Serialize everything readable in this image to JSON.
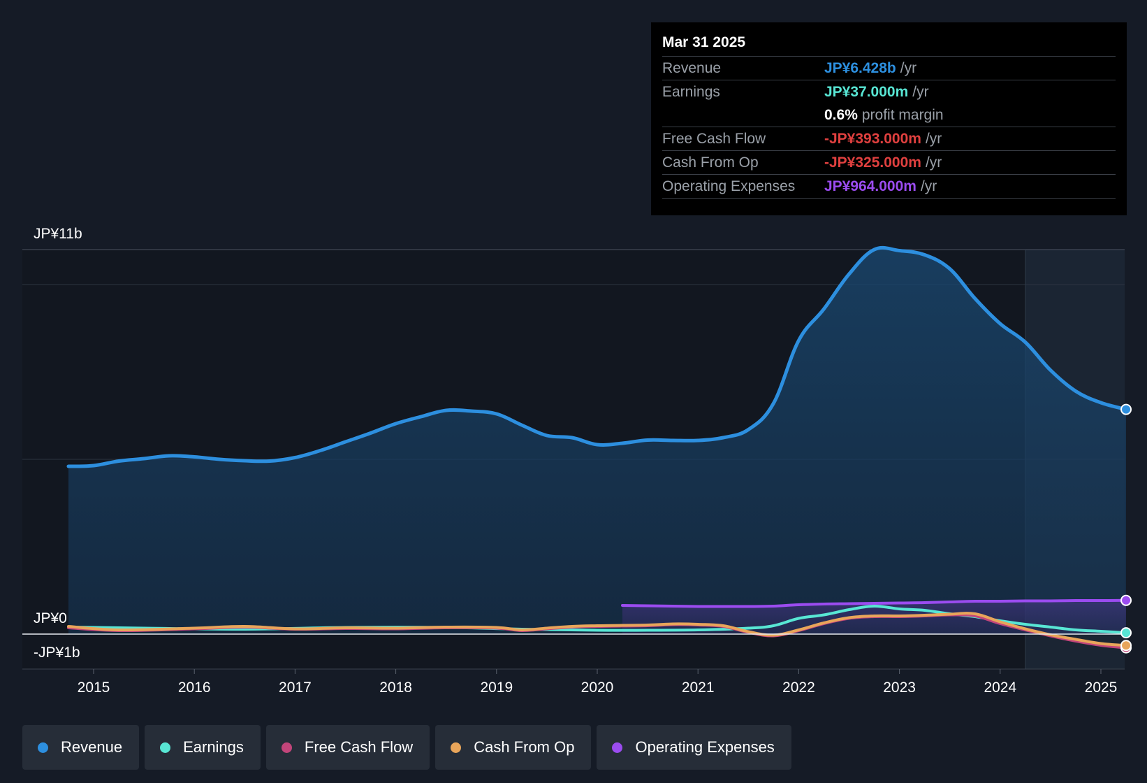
{
  "chart_data": {
    "type": "area",
    "title": "",
    "y_axis": {
      "top_label": "JP¥11b",
      "zero_label": "JP¥0",
      "bottom_label": "-JP¥1b",
      "ylim": [
        -1,
        11
      ],
      "unit": "JP¥ billions"
    },
    "x_ticks": [
      "2015",
      "2016",
      "2017",
      "2018",
      "2019",
      "2020",
      "2021",
      "2022",
      "2023",
      "2024",
      "2025"
    ],
    "forecast_start": 2024.25,
    "series": [
      {
        "name": "Revenue",
        "color": "#2d8fdf",
        "filled": true,
        "points": [
          [
            2014.75,
            4.8
          ],
          [
            2015.0,
            4.82
          ],
          [
            2015.25,
            4.95
          ],
          [
            2015.5,
            5.02
          ],
          [
            2015.75,
            5.1
          ],
          [
            2016.0,
            5.07
          ],
          [
            2016.25,
            5.0
          ],
          [
            2016.5,
            4.96
          ],
          [
            2016.75,
            4.95
          ],
          [
            2017.0,
            5.05
          ],
          [
            2017.25,
            5.25
          ],
          [
            2017.5,
            5.5
          ],
          [
            2017.75,
            5.75
          ],
          [
            2018.0,
            6.02
          ],
          [
            2018.25,
            6.22
          ],
          [
            2018.5,
            6.4
          ],
          [
            2018.75,
            6.38
          ],
          [
            2019.0,
            6.3
          ],
          [
            2019.25,
            5.98
          ],
          [
            2019.5,
            5.68
          ],
          [
            2019.75,
            5.62
          ],
          [
            2020.0,
            5.42
          ],
          [
            2020.25,
            5.46
          ],
          [
            2020.5,
            5.55
          ],
          [
            2020.75,
            5.54
          ],
          [
            2021.0,
            5.54
          ],
          [
            2021.25,
            5.62
          ],
          [
            2021.5,
            5.85
          ],
          [
            2021.75,
            6.6
          ],
          [
            2022.0,
            8.4
          ],
          [
            2022.25,
            9.3
          ],
          [
            2022.5,
            10.3
          ],
          [
            2022.75,
            11.0
          ],
          [
            2023.0,
            10.97
          ],
          [
            2023.25,
            10.85
          ],
          [
            2023.5,
            10.45
          ],
          [
            2023.75,
            9.6
          ],
          [
            2024.0,
            8.88
          ],
          [
            2024.25,
            8.35
          ],
          [
            2024.5,
            7.55
          ],
          [
            2024.75,
            6.95
          ],
          [
            2025.0,
            6.62
          ],
          [
            2025.25,
            6.428
          ]
        ]
      },
      {
        "name": "Earnings",
        "color": "#58e6d4",
        "filled": false,
        "points": [
          [
            2014.75,
            0.2
          ],
          [
            2015.5,
            0.17
          ],
          [
            2016.5,
            0.14
          ],
          [
            2017.5,
            0.19
          ],
          [
            2018.5,
            0.19
          ],
          [
            2019.25,
            0.14
          ],
          [
            2020.0,
            0.11
          ],
          [
            2020.5,
            0.11
          ],
          [
            2021.0,
            0.12
          ],
          [
            2021.5,
            0.17
          ],
          [
            2021.75,
            0.24
          ],
          [
            2022.0,
            0.45
          ],
          [
            2022.25,
            0.55
          ],
          [
            2022.5,
            0.7
          ],
          [
            2022.75,
            0.8
          ],
          [
            2023.0,
            0.72
          ],
          [
            2023.25,
            0.68
          ],
          [
            2023.5,
            0.58
          ],
          [
            2023.75,
            0.5
          ],
          [
            2024.0,
            0.38
          ],
          [
            2024.25,
            0.28
          ],
          [
            2024.5,
            0.2
          ],
          [
            2024.75,
            0.12
          ],
          [
            2025.0,
            0.08
          ],
          [
            2025.25,
            0.037
          ]
        ]
      },
      {
        "name": "Free Cash Flow",
        "color": "#c2457a",
        "filled": false,
        "points": [
          [
            2014.75,
            0.18
          ],
          [
            2015.25,
            0.1
          ],
          [
            2016.0,
            0.15
          ],
          [
            2016.5,
            0.2
          ],
          [
            2017.0,
            0.14
          ],
          [
            2017.5,
            0.16
          ],
          [
            2018.0,
            0.15
          ],
          [
            2018.5,
            0.18
          ],
          [
            2019.0,
            0.17
          ],
          [
            2019.25,
            0.1
          ],
          [
            2019.5,
            0.15
          ],
          [
            2019.75,
            0.2
          ],
          [
            2020.0,
            0.22
          ],
          [
            2020.5,
            0.24
          ],
          [
            2020.75,
            0.27
          ],
          [
            2021.0,
            0.26
          ],
          [
            2021.25,
            0.22
          ],
          [
            2021.5,
            0.05
          ],
          [
            2021.75,
            -0.05
          ],
          [
            2022.0,
            0.1
          ],
          [
            2022.25,
            0.3
          ],
          [
            2022.5,
            0.45
          ],
          [
            2022.75,
            0.5
          ],
          [
            2023.0,
            0.5
          ],
          [
            2023.25,
            0.52
          ],
          [
            2023.5,
            0.55
          ],
          [
            2023.75,
            0.52
          ],
          [
            2024.0,
            0.3
          ],
          [
            2024.25,
            0.12
          ],
          [
            2024.5,
            -0.05
          ],
          [
            2024.75,
            -0.2
          ],
          [
            2025.0,
            -0.32
          ],
          [
            2025.25,
            -0.393
          ]
        ]
      },
      {
        "name": "Cash From Op",
        "color": "#e8a55a",
        "filled": false,
        "points": [
          [
            2014.75,
            0.22
          ],
          [
            2015.25,
            0.12
          ],
          [
            2016.0,
            0.17
          ],
          [
            2016.5,
            0.22
          ],
          [
            2017.0,
            0.15
          ],
          [
            2017.5,
            0.18
          ],
          [
            2018.0,
            0.17
          ],
          [
            2018.5,
            0.2
          ],
          [
            2019.0,
            0.19
          ],
          [
            2019.25,
            0.12
          ],
          [
            2019.5,
            0.17
          ],
          [
            2019.75,
            0.22
          ],
          [
            2020.0,
            0.24
          ],
          [
            2020.5,
            0.26
          ],
          [
            2020.75,
            0.29
          ],
          [
            2021.0,
            0.28
          ],
          [
            2021.25,
            0.24
          ],
          [
            2021.5,
            0.07
          ],
          [
            2021.75,
            -0.03
          ],
          [
            2022.0,
            0.12
          ],
          [
            2022.25,
            0.32
          ],
          [
            2022.5,
            0.47
          ],
          [
            2022.75,
            0.52
          ],
          [
            2023.0,
            0.52
          ],
          [
            2023.25,
            0.54
          ],
          [
            2023.5,
            0.57
          ],
          [
            2023.75,
            0.58
          ],
          [
            2024.0,
            0.35
          ],
          [
            2024.25,
            0.15
          ],
          [
            2024.5,
            -0.02
          ],
          [
            2024.75,
            -0.15
          ],
          [
            2025.0,
            -0.27
          ],
          [
            2025.25,
            -0.325
          ]
        ]
      },
      {
        "name": "Operating Expenses",
        "color": "#9b4cf0",
        "filled": true,
        "points": [
          [
            2020.25,
            0.82
          ],
          [
            2020.5,
            0.81
          ],
          [
            2020.75,
            0.8
          ],
          [
            2021.0,
            0.79
          ],
          [
            2021.25,
            0.79
          ],
          [
            2021.5,
            0.79
          ],
          [
            2021.75,
            0.8
          ],
          [
            2022.0,
            0.84
          ],
          [
            2022.25,
            0.86
          ],
          [
            2022.5,
            0.87
          ],
          [
            2022.75,
            0.88
          ],
          [
            2023.0,
            0.89
          ],
          [
            2023.25,
            0.9
          ],
          [
            2023.5,
            0.92
          ],
          [
            2023.75,
            0.94
          ],
          [
            2024.0,
            0.94
          ],
          [
            2024.25,
            0.95
          ],
          [
            2024.5,
            0.95
          ],
          [
            2024.75,
            0.96
          ],
          [
            2025.0,
            0.96
          ],
          [
            2025.25,
            0.964
          ]
        ]
      }
    ]
  },
  "tooltip": {
    "date": "Mar 31 2025",
    "rows": [
      {
        "label": "Revenue",
        "value": "JP¥6.428b",
        "unit": "/yr",
        "color": "#2d8fdf"
      },
      {
        "label": "Earnings",
        "value": "JP¥37.000m",
        "unit": "/yr",
        "color": "#58e6d4"
      },
      {
        "label": "",
        "value": "0.6%",
        "unit": "profit margin",
        "color": "#ffffff"
      },
      {
        "label": "Free Cash Flow",
        "value": "-JP¥393.000m",
        "unit": "/yr",
        "color": "#e0403f"
      },
      {
        "label": "Cash From Op",
        "value": "-JP¥325.000m",
        "unit": "/yr",
        "color": "#e0403f"
      },
      {
        "label": "Operating Expenses",
        "value": "JP¥964.000m",
        "unit": "/yr",
        "color": "#9b4cf0"
      }
    ]
  },
  "legend": [
    {
      "label": "Revenue",
      "color": "#2d8fdf"
    },
    {
      "label": "Earnings",
      "color": "#58e6d4"
    },
    {
      "label": "Free Cash Flow",
      "color": "#c2457a"
    },
    {
      "label": "Cash From Op",
      "color": "#e8a55a"
    },
    {
      "label": "Operating Expenses",
      "color": "#9b4cf0"
    }
  ]
}
